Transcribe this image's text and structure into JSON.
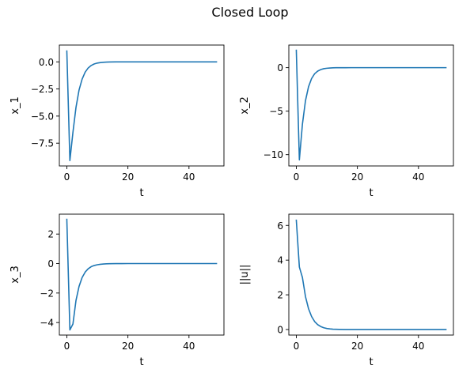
{
  "figure": {
    "title": "Closed Loop"
  },
  "chart_data": [
    {
      "type": "line",
      "xlabel": "t",
      "ylabel": "x_1",
      "xlim": [
        -2.45,
        51.45
      ],
      "ylim": [
        -9.6,
        1.55
      ],
      "xticks": [
        0,
        20,
        40
      ],
      "yticks": [
        0.0,
        -2.5,
        -5.0,
        -7.5
      ],
      "ytick_labels": [
        "0.0",
        "−2.5",
        "−5.0",
        "−7.5"
      ],
      "xtick_labels": [
        "0",
        "20",
        "40"
      ],
      "series": [
        {
          "color": "#1f77b4",
          "x": [
            0,
            1,
            2,
            3,
            4,
            5,
            6,
            7,
            8,
            9,
            10,
            11,
            12,
            13,
            14,
            16,
            18,
            20,
            25,
            30,
            35,
            40,
            45,
            49
          ],
          "y": [
            1.0,
            -9.1,
            -6.5,
            -4.2,
            -2.6,
            -1.6,
            -0.95,
            -0.56,
            -0.33,
            -0.19,
            -0.11,
            -0.065,
            -0.038,
            -0.022,
            -0.013,
            -0.005,
            -0.002,
            -0.001,
            0,
            0,
            0,
            0,
            0,
            0
          ]
        }
      ]
    },
    {
      "type": "line",
      "xlabel": "t",
      "ylabel": "x_2",
      "xlim": [
        -2.45,
        51.45
      ],
      "ylim": [
        -11.3,
        2.6
      ],
      "xticks": [
        0,
        20,
        40
      ],
      "yticks": [
        0,
        -5,
        -10
      ],
      "ytick_labels": [
        "0",
        "−5",
        "−10"
      ],
      "xtick_labels": [
        "0",
        "20",
        "40"
      ],
      "series": [
        {
          "color": "#1f77b4",
          "x": [
            0,
            1,
            2,
            3,
            4,
            5,
            6,
            7,
            8,
            9,
            10,
            11,
            12,
            13,
            14,
            16,
            18,
            20,
            25,
            30,
            35,
            40,
            45,
            49
          ],
          "y": [
            2.0,
            -10.6,
            -6.5,
            -3.8,
            -2.2,
            -1.25,
            -0.7,
            -0.4,
            -0.22,
            -0.12,
            -0.07,
            -0.04,
            -0.02,
            -0.01,
            -0.005,
            -0.002,
            0,
            0,
            0,
            0,
            0,
            0,
            0,
            0
          ]
        }
      ]
    },
    {
      "type": "line",
      "xlabel": "t",
      "ylabel": "x_3",
      "xlim": [
        -2.45,
        51.45
      ],
      "ylim": [
        -4.85,
        3.35
      ],
      "xticks": [
        0,
        20,
        40
      ],
      "yticks": [
        2,
        0,
        -2,
        -4
      ],
      "ytick_labels": [
        "2",
        "0",
        "−2",
        "−4"
      ],
      "xtick_labels": [
        "0",
        "20",
        "40"
      ],
      "series": [
        {
          "color": "#1f77b4",
          "x": [
            0,
            1,
            2,
            3,
            4,
            5,
            6,
            7,
            8,
            9,
            10,
            11,
            12,
            13,
            14,
            16,
            18,
            20,
            25,
            30,
            35,
            40,
            45,
            49
          ],
          "y": [
            3.0,
            -4.5,
            -4.1,
            -2.5,
            -1.55,
            -0.95,
            -0.58,
            -0.35,
            -0.21,
            -0.13,
            -0.08,
            -0.05,
            -0.03,
            -0.018,
            -0.011,
            -0.004,
            -0.001,
            0,
            0,
            0,
            0,
            0,
            0,
            0
          ]
        }
      ]
    },
    {
      "type": "line",
      "xlabel": "t",
      "ylabel": "||u||",
      "xlim": [
        -2.45,
        51.45
      ],
      "ylim": [
        -0.32,
        6.65
      ],
      "xticks": [
        0,
        20,
        40
      ],
      "yticks": [
        0,
        2,
        4,
        6
      ],
      "ytick_labels": [
        "0",
        "2",
        "4",
        "6"
      ],
      "xtick_labels": [
        "0",
        "20",
        "40"
      ],
      "series": [
        {
          "color": "#1f77b4",
          "x": [
            0,
            1,
            2,
            3,
            4,
            5,
            6,
            7,
            8,
            9,
            10,
            11,
            12,
            13,
            14,
            16,
            18,
            20,
            25,
            30,
            35,
            40,
            45,
            49
          ],
          "y": [
            6.3,
            3.6,
            3.0,
            1.9,
            1.2,
            0.75,
            0.46,
            0.28,
            0.17,
            0.1,
            0.06,
            0.035,
            0.02,
            0.012,
            0.007,
            0.003,
            0.001,
            0,
            0,
            0,
            0,
            0,
            0,
            0
          ]
        }
      ]
    }
  ]
}
